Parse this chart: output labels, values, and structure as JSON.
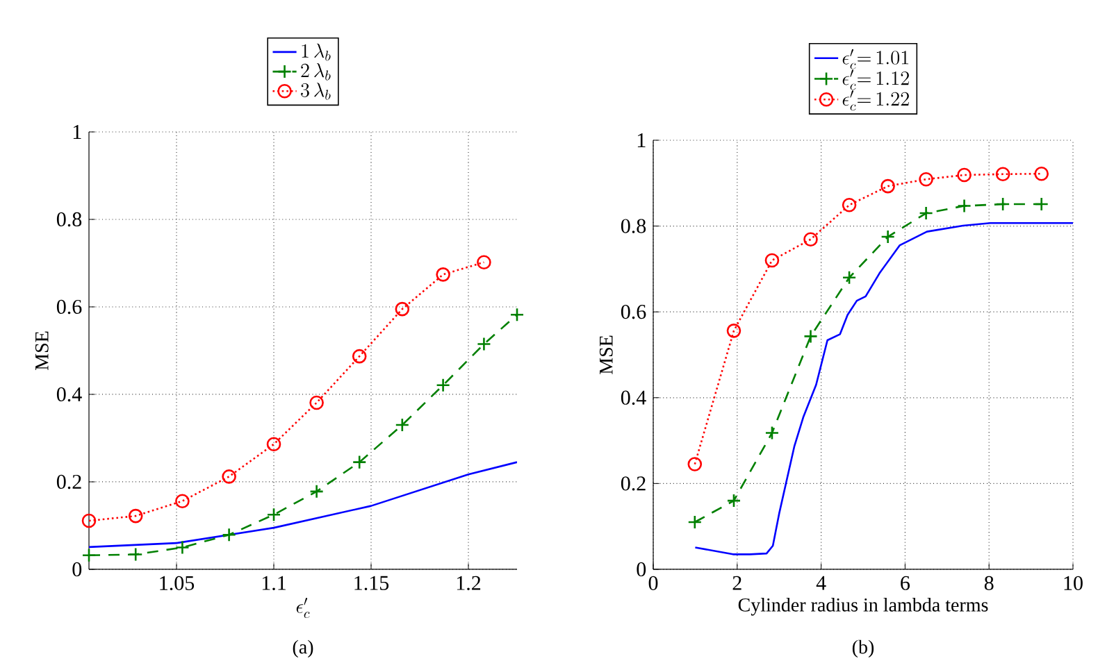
{
  "chart_data": [
    {
      "type": "line",
      "xlabel": "\\epsilon'_c",
      "ylabel": "MSE",
      "annotations": [
        "(a)"
      ],
      "xlim": [
        1.005,
        1.225
      ],
      "ylim": [
        0,
        1
      ],
      "xticks": [
        1.05,
        1.1,
        1.15,
        1.2
      ],
      "yticks": [
        0,
        0.2,
        0.4,
        0.6,
        0.8,
        1
      ],
      "grid": true,
      "legend": "top",
      "series": [
        {
          "name": "1\\,\\lambda_b",
          "color": "#0000ff",
          "line_style": "solid",
          "marker": "none",
          "x": [
            1.005,
            1.05,
            1.1,
            1.15,
            1.2,
            1.225
          ],
          "values": [
            0.051,
            0.06,
            0.095,
            0.145,
            0.217,
            0.245
          ]
        },
        {
          "name": "2\\,\\lambda_b",
          "color": "#008000",
          "line_style": "dashed",
          "marker": "cross",
          "x": [
            1.005,
            1.029,
            1.053,
            1.077,
            1.1,
            1.122,
            1.144,
            1.166,
            1.187,
            1.208,
            1.225
          ],
          "values": [
            0.032,
            0.034,
            0.05,
            0.079,
            0.125,
            0.178,
            0.245,
            0.33,
            0.421,
            0.515,
            0.582
          ]
        },
        {
          "name": "3\\,\\lambda_b",
          "color": "#ff0000",
          "line_style": "dotted",
          "marker": "circle",
          "x": [
            1.005,
            1.029,
            1.053,
            1.077,
            1.1,
            1.122,
            1.144,
            1.166,
            1.187,
            1.208
          ],
          "values": [
            0.111,
            0.122,
            0.156,
            0.212,
            0.286,
            0.381,
            0.487,
            0.595,
            0.674,
            0.702
          ]
        }
      ]
    },
    {
      "type": "line",
      "xlabel": "Cylinder radius in lambda terms",
      "ylabel": "MSE",
      "annotations": [
        "(b)"
      ],
      "xlim": [
        0,
        10
      ],
      "ylim": [
        0,
        1
      ],
      "xticks": [
        0,
        2,
        4,
        6,
        8,
        10
      ],
      "yticks": [
        0,
        0.2,
        0.4,
        0.6,
        0.8,
        1
      ],
      "grid": true,
      "legend": "top",
      "series": [
        {
          "name": "\\epsilon'_c{=}\\,1.01",
          "color": "#0000ff",
          "line_style": "solid",
          "marker": "none",
          "x": [
            1,
            1.9,
            2.3,
            2.7,
            2.85,
            3.0,
            3.36,
            3.58,
            3.88,
            4.15,
            4.45,
            4.63,
            4.85,
            5.06,
            5.39,
            5.87,
            6.52,
            7.38,
            8.03,
            10
          ],
          "values": [
            0.051,
            0.035,
            0.035,
            0.037,
            0.055,
            0.13,
            0.286,
            0.356,
            0.43,
            0.534,
            0.548,
            0.593,
            0.626,
            0.636,
            0.69,
            0.755,
            0.787,
            0.801,
            0.807,
            0.807
          ]
        },
        {
          "name": "\\epsilon'_c{=}\\,1.12",
          "color": "#008000",
          "line_style": "dashed",
          "marker": "cross",
          "x": [
            0.99,
            1.92,
            2.83,
            3.75,
            4.67,
            5.59,
            6.5,
            7.41,
            8.33,
            9.25
          ],
          "values": [
            0.11,
            0.16,
            0.318,
            0.543,
            0.68,
            0.775,
            0.83,
            0.847,
            0.851,
            0.851
          ]
        },
        {
          "name": "\\epsilon'_c{=}\\,1.22",
          "color": "#ff0000",
          "line_style": "dotted",
          "marker": "circle",
          "x": [
            0.99,
            1.92,
            2.83,
            3.75,
            4.67,
            5.59,
            6.5,
            7.41,
            8.33,
            9.25
          ],
          "values": [
            0.245,
            0.556,
            0.72,
            0.769,
            0.849,
            0.893,
            0.909,
            0.919,
            0.921,
            0.922
          ]
        }
      ]
    }
  ]
}
